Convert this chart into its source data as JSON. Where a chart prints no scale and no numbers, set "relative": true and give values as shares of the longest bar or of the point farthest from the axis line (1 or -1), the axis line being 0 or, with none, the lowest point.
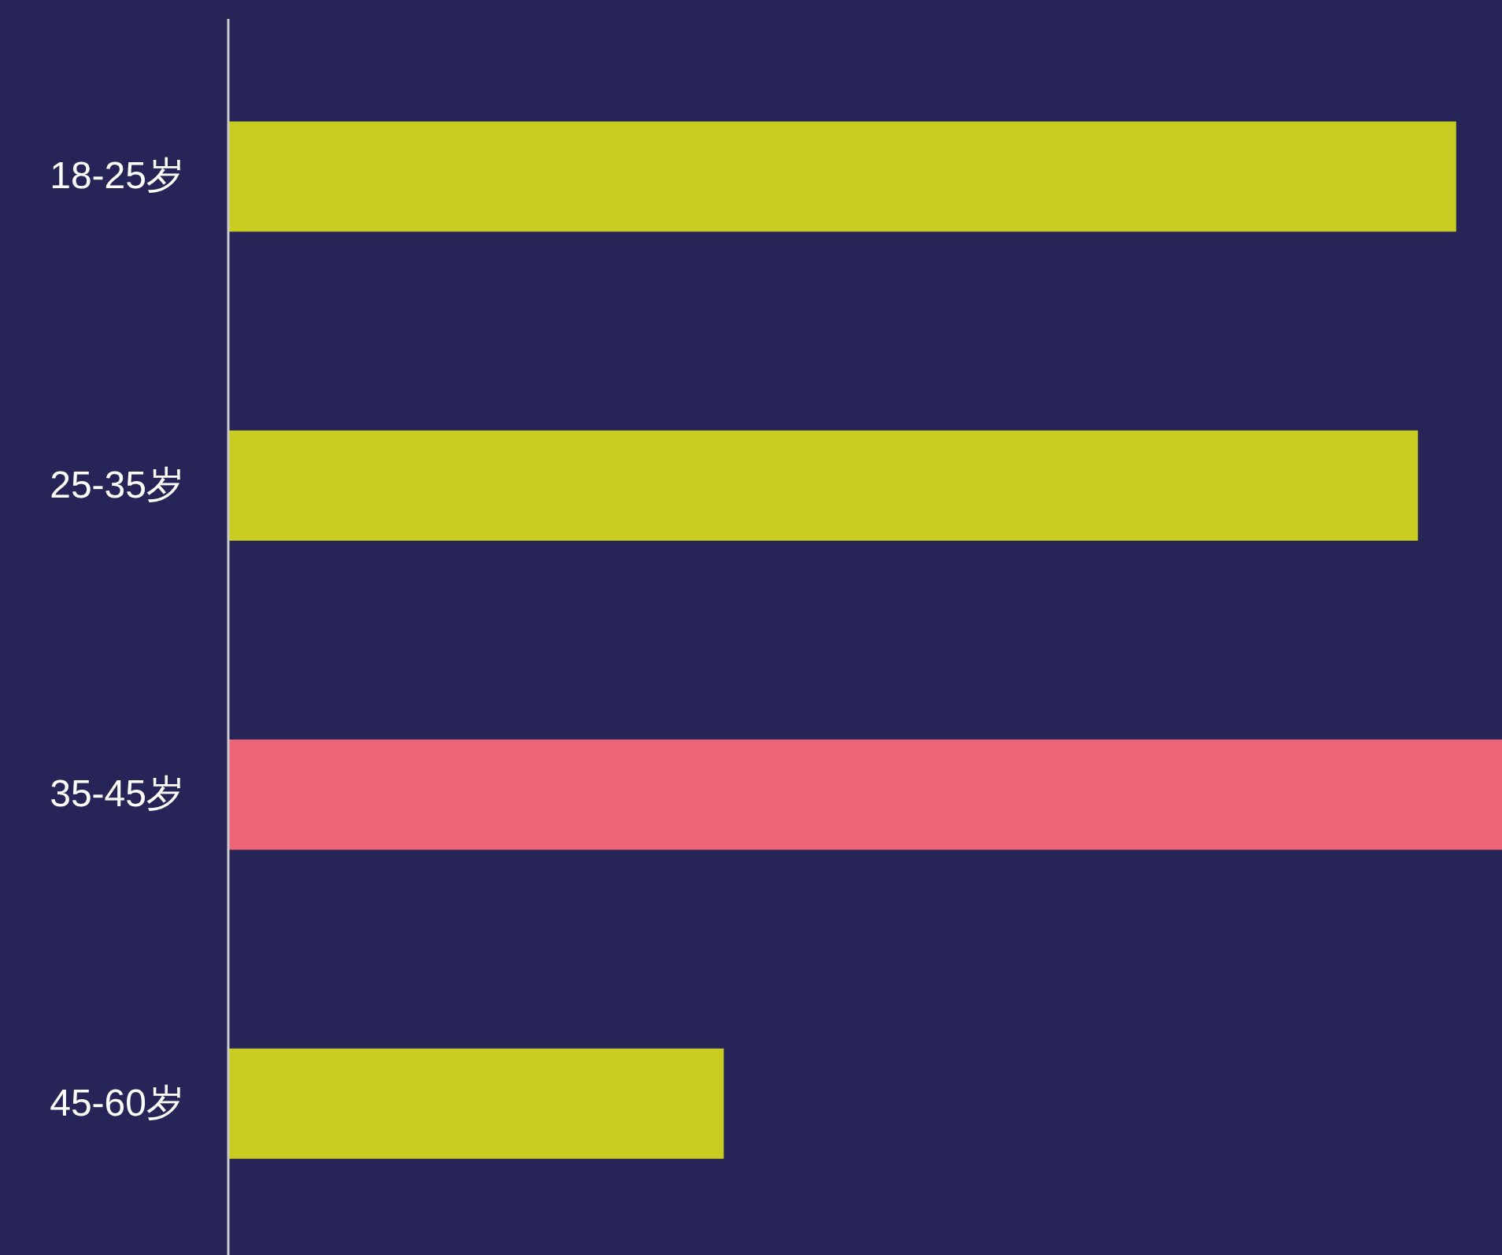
{
  "chart_data": {
    "type": "bar",
    "orientation": "horizontal",
    "relative": true,
    "categories": [
      "18-25岁",
      "25-35岁",
      "35-45岁",
      "45-60岁"
    ],
    "values": [
      0.964,
      0.934,
      1,
      0.389
    ],
    "colors": [
      "#c9cd22",
      "#c9cd22",
      "#ec6577",
      "#c9cd22"
    ]
  }
}
